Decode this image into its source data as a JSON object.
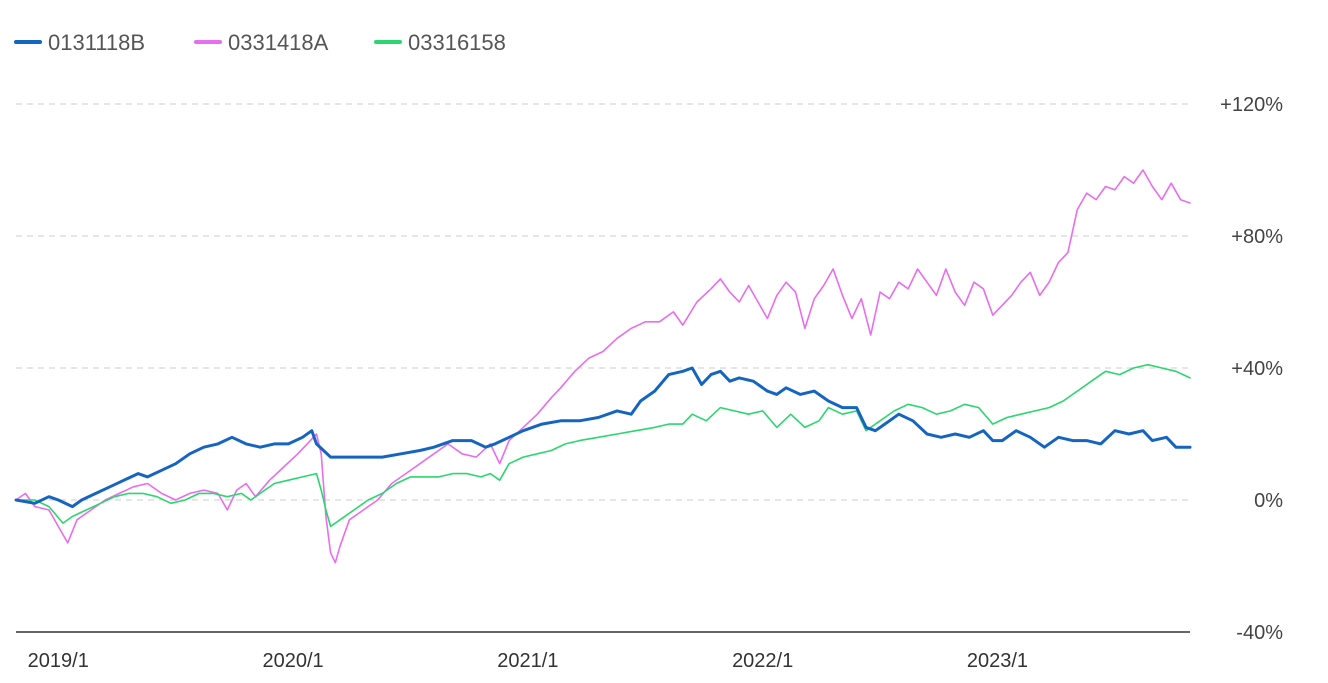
{
  "chart_data": {
    "type": "line",
    "x_ticks": [
      {
        "label": "2019/1",
        "t": 2019.0
      },
      {
        "label": "2020/1",
        "t": 2020.0
      },
      {
        "label": "2021/1",
        "t": 2021.0
      },
      {
        "label": "2022/1",
        "t": 2022.0
      },
      {
        "label": "2023/1",
        "t": 2023.0
      }
    ],
    "xlim": [
      2018.82,
      2023.82
    ],
    "ylim": [
      -40,
      120
    ],
    "y_ticks": [
      {
        "label": "+120%",
        "value": 120
      },
      {
        "label": "+80%",
        "value": 80
      },
      {
        "label": "+40%",
        "value": 40
      },
      {
        "label": "0%",
        "value": 0
      },
      {
        "label": "-40%",
        "value": -40
      }
    ],
    "y_axis_position": "right",
    "grid": "horizontal-dashed",
    "legend_position": "top-left",
    "series": [
      {
        "name": "0131118B",
        "color": "#1565c0",
        "points": [
          [
            2018.82,
            0
          ],
          [
            2018.9,
            -1
          ],
          [
            2018.96,
            1
          ],
          [
            2019.0,
            0
          ],
          [
            2019.06,
            -2
          ],
          [
            2019.1,
            0
          ],
          [
            2019.16,
            2
          ],
          [
            2019.22,
            4
          ],
          [
            2019.28,
            6
          ],
          [
            2019.34,
            8
          ],
          [
            2019.38,
            7
          ],
          [
            2019.44,
            9
          ],
          [
            2019.5,
            11
          ],
          [
            2019.56,
            14
          ],
          [
            2019.62,
            16
          ],
          [
            2019.68,
            17
          ],
          [
            2019.74,
            19
          ],
          [
            2019.8,
            17
          ],
          [
            2019.86,
            16
          ],
          [
            2019.92,
            17
          ],
          [
            2019.98,
            17
          ],
          [
            2020.04,
            19
          ],
          [
            2020.08,
            21
          ],
          [
            2020.1,
            17
          ],
          [
            2020.16,
            13
          ],
          [
            2020.22,
            13
          ],
          [
            2020.3,
            13
          ],
          [
            2020.38,
            13
          ],
          [
            2020.46,
            14
          ],
          [
            2020.54,
            15
          ],
          [
            2020.6,
            16
          ],
          [
            2020.68,
            18
          ],
          [
            2020.76,
            18
          ],
          [
            2020.82,
            16
          ],
          [
            2020.86,
            17
          ],
          [
            2020.92,
            19
          ],
          [
            2020.98,
            21
          ],
          [
            2021.06,
            23
          ],
          [
            2021.14,
            24
          ],
          [
            2021.22,
            24
          ],
          [
            2021.3,
            25
          ],
          [
            2021.38,
            27
          ],
          [
            2021.44,
            26
          ],
          [
            2021.48,
            30
          ],
          [
            2021.54,
            33
          ],
          [
            2021.6,
            38
          ],
          [
            2021.66,
            39
          ],
          [
            2021.7,
            40
          ],
          [
            2021.74,
            35
          ],
          [
            2021.78,
            38
          ],
          [
            2021.82,
            39
          ],
          [
            2021.86,
            36
          ],
          [
            2021.9,
            37
          ],
          [
            2021.96,
            36
          ],
          [
            2022.02,
            33
          ],
          [
            2022.06,
            32
          ],
          [
            2022.1,
            34
          ],
          [
            2022.16,
            32
          ],
          [
            2022.22,
            33
          ],
          [
            2022.28,
            30
          ],
          [
            2022.34,
            28
          ],
          [
            2022.4,
            28
          ],
          [
            2022.44,
            22
          ],
          [
            2022.48,
            21
          ],
          [
            2022.52,
            23
          ],
          [
            2022.58,
            26
          ],
          [
            2022.64,
            24
          ],
          [
            2022.7,
            20
          ],
          [
            2022.76,
            19
          ],
          [
            2022.82,
            20
          ],
          [
            2022.88,
            19
          ],
          [
            2022.94,
            21
          ],
          [
            2022.98,
            18
          ],
          [
            2023.02,
            18
          ],
          [
            2023.08,
            21
          ],
          [
            2023.14,
            19
          ],
          [
            2023.2,
            16
          ],
          [
            2023.26,
            19
          ],
          [
            2023.32,
            18
          ],
          [
            2023.38,
            18
          ],
          [
            2023.44,
            17
          ],
          [
            2023.5,
            21
          ],
          [
            2023.56,
            20
          ],
          [
            2023.62,
            21
          ],
          [
            2023.66,
            18
          ],
          [
            2023.72,
            19
          ],
          [
            2023.76,
            16
          ],
          [
            2023.82,
            16
          ]
        ]
      },
      {
        "name": "0331418A",
        "color": "#e86df0",
        "points": [
          [
            2018.82,
            0
          ],
          [
            2018.86,
            2
          ],
          [
            2018.9,
            -2
          ],
          [
            2018.96,
            -3
          ],
          [
            2019.0,
            -8
          ],
          [
            2019.04,
            -13
          ],
          [
            2019.08,
            -6
          ],
          [
            2019.14,
            -3
          ],
          [
            2019.2,
            0
          ],
          [
            2019.26,
            2
          ],
          [
            2019.32,
            4
          ],
          [
            2019.38,
            5
          ],
          [
            2019.44,
            2
          ],
          [
            2019.5,
            0
          ],
          [
            2019.56,
            2
          ],
          [
            2019.62,
            3
          ],
          [
            2019.68,
            2
          ],
          [
            2019.72,
            -3
          ],
          [
            2019.76,
            3
          ],
          [
            2019.8,
            5
          ],
          [
            2019.84,
            1
          ],
          [
            2019.9,
            6
          ],
          [
            2019.96,
            10
          ],
          [
            2020.02,
            14
          ],
          [
            2020.06,
            17
          ],
          [
            2020.1,
            20
          ],
          [
            2020.12,
            14
          ],
          [
            2020.14,
            -5
          ],
          [
            2020.16,
            -16
          ],
          [
            2020.18,
            -19
          ],
          [
            2020.2,
            -14
          ],
          [
            2020.24,
            -6
          ],
          [
            2020.3,
            -3
          ],
          [
            2020.36,
            0
          ],
          [
            2020.42,
            5
          ],
          [
            2020.48,
            8
          ],
          [
            2020.54,
            11
          ],
          [
            2020.6,
            14
          ],
          [
            2020.66,
            17
          ],
          [
            2020.72,
            14
          ],
          [
            2020.78,
            13
          ],
          [
            2020.84,
            17
          ],
          [
            2020.88,
            11
          ],
          [
            2020.92,
            18
          ],
          [
            2020.98,
            22
          ],
          [
            2021.04,
            26
          ],
          [
            2021.1,
            31
          ],
          [
            2021.14,
            34
          ],
          [
            2021.2,
            39
          ],
          [
            2021.26,
            43
          ],
          [
            2021.32,
            45
          ],
          [
            2021.38,
            49
          ],
          [
            2021.44,
            52
          ],
          [
            2021.5,
            54
          ],
          [
            2021.56,
            54
          ],
          [
            2021.62,
            57
          ],
          [
            2021.66,
            53
          ],
          [
            2021.72,
            60
          ],
          [
            2021.78,
            64
          ],
          [
            2021.82,
            67
          ],
          [
            2021.86,
            63
          ],
          [
            2021.9,
            60
          ],
          [
            2021.94,
            65
          ],
          [
            2021.98,
            60
          ],
          [
            2022.02,
            55
          ],
          [
            2022.06,
            62
          ],
          [
            2022.1,
            66
          ],
          [
            2022.14,
            63
          ],
          [
            2022.18,
            52
          ],
          [
            2022.22,
            61
          ],
          [
            2022.26,
            65
          ],
          [
            2022.3,
            70
          ],
          [
            2022.34,
            62
          ],
          [
            2022.38,
            55
          ],
          [
            2022.42,
            61
          ],
          [
            2022.46,
            50
          ],
          [
            2022.5,
            63
          ],
          [
            2022.54,
            61
          ],
          [
            2022.58,
            66
          ],
          [
            2022.62,
            64
          ],
          [
            2022.66,
            70
          ],
          [
            2022.7,
            66
          ],
          [
            2022.74,
            62
          ],
          [
            2022.78,
            70
          ],
          [
            2022.82,
            63
          ],
          [
            2022.86,
            59
          ],
          [
            2022.9,
            66
          ],
          [
            2022.94,
            64
          ],
          [
            2022.98,
            56
          ],
          [
            2023.02,
            59
          ],
          [
            2023.06,
            62
          ],
          [
            2023.1,
            66
          ],
          [
            2023.14,
            69
          ],
          [
            2023.18,
            62
          ],
          [
            2023.22,
            66
          ],
          [
            2023.26,
            72
          ],
          [
            2023.3,
            75
          ],
          [
            2023.34,
            88
          ],
          [
            2023.38,
            93
          ],
          [
            2023.42,
            91
          ],
          [
            2023.46,
            95
          ],
          [
            2023.5,
            94
          ],
          [
            2023.54,
            98
          ],
          [
            2023.58,
            96
          ],
          [
            2023.62,
            100
          ],
          [
            2023.66,
            95
          ],
          [
            2023.7,
            91
          ],
          [
            2023.74,
            96
          ],
          [
            2023.78,
            91
          ],
          [
            2023.82,
            90
          ]
        ]
      },
      {
        "name": "03316158",
        "color": "#2bd66f",
        "points": [
          [
            2018.82,
            0
          ],
          [
            2018.9,
            0
          ],
          [
            2018.96,
            -2
          ],
          [
            2019.02,
            -7
          ],
          [
            2019.06,
            -5
          ],
          [
            2019.12,
            -3
          ],
          [
            2019.18,
            -1
          ],
          [
            2019.24,
            1
          ],
          [
            2019.3,
            2
          ],
          [
            2019.36,
            2
          ],
          [
            2019.42,
            1
          ],
          [
            2019.48,
            -1
          ],
          [
            2019.54,
            0
          ],
          [
            2019.6,
            2
          ],
          [
            2019.66,
            2
          ],
          [
            2019.72,
            1
          ],
          [
            2019.78,
            2
          ],
          [
            2019.82,
            0
          ],
          [
            2019.86,
            2
          ],
          [
            2019.92,
            5
          ],
          [
            2019.98,
            6
          ],
          [
            2020.04,
            7
          ],
          [
            2020.1,
            8
          ],
          [
            2020.12,
            3
          ],
          [
            2020.14,
            -3
          ],
          [
            2020.16,
            -8
          ],
          [
            2020.2,
            -6
          ],
          [
            2020.26,
            -3
          ],
          [
            2020.32,
            0
          ],
          [
            2020.38,
            2
          ],
          [
            2020.44,
            5
          ],
          [
            2020.5,
            7
          ],
          [
            2020.56,
            7
          ],
          [
            2020.62,
            7
          ],
          [
            2020.68,
            8
          ],
          [
            2020.74,
            8
          ],
          [
            2020.8,
            7
          ],
          [
            2020.84,
            8
          ],
          [
            2020.88,
            6
          ],
          [
            2020.92,
            11
          ],
          [
            2020.98,
            13
          ],
          [
            2021.04,
            14
          ],
          [
            2021.1,
            15
          ],
          [
            2021.16,
            17
          ],
          [
            2021.22,
            18
          ],
          [
            2021.3,
            19
          ],
          [
            2021.38,
            20
          ],
          [
            2021.46,
            21
          ],
          [
            2021.54,
            22
          ],
          [
            2021.6,
            23
          ],
          [
            2021.66,
            23
          ],
          [
            2021.7,
            26
          ],
          [
            2021.76,
            24
          ],
          [
            2021.82,
            28
          ],
          [
            2021.88,
            27
          ],
          [
            2021.94,
            26
          ],
          [
            2022.0,
            27
          ],
          [
            2022.06,
            22
          ],
          [
            2022.12,
            26
          ],
          [
            2022.18,
            22
          ],
          [
            2022.24,
            24
          ],
          [
            2022.28,
            28
          ],
          [
            2022.34,
            26
          ],
          [
            2022.4,
            27
          ],
          [
            2022.44,
            21
          ],
          [
            2022.5,
            24
          ],
          [
            2022.56,
            27
          ],
          [
            2022.62,
            29
          ],
          [
            2022.68,
            28
          ],
          [
            2022.74,
            26
          ],
          [
            2022.8,
            27
          ],
          [
            2022.86,
            29
          ],
          [
            2022.92,
            28
          ],
          [
            2022.98,
            23
          ],
          [
            2023.04,
            25
          ],
          [
            2023.1,
            26
          ],
          [
            2023.16,
            27
          ],
          [
            2023.22,
            28
          ],
          [
            2023.28,
            30
          ],
          [
            2023.34,
            33
          ],
          [
            2023.4,
            36
          ],
          [
            2023.46,
            39
          ],
          [
            2023.52,
            38
          ],
          [
            2023.58,
            40
          ],
          [
            2023.64,
            41
          ],
          [
            2023.7,
            40
          ],
          [
            2023.76,
            39
          ],
          [
            2023.82,
            37
          ]
        ]
      }
    ]
  }
}
